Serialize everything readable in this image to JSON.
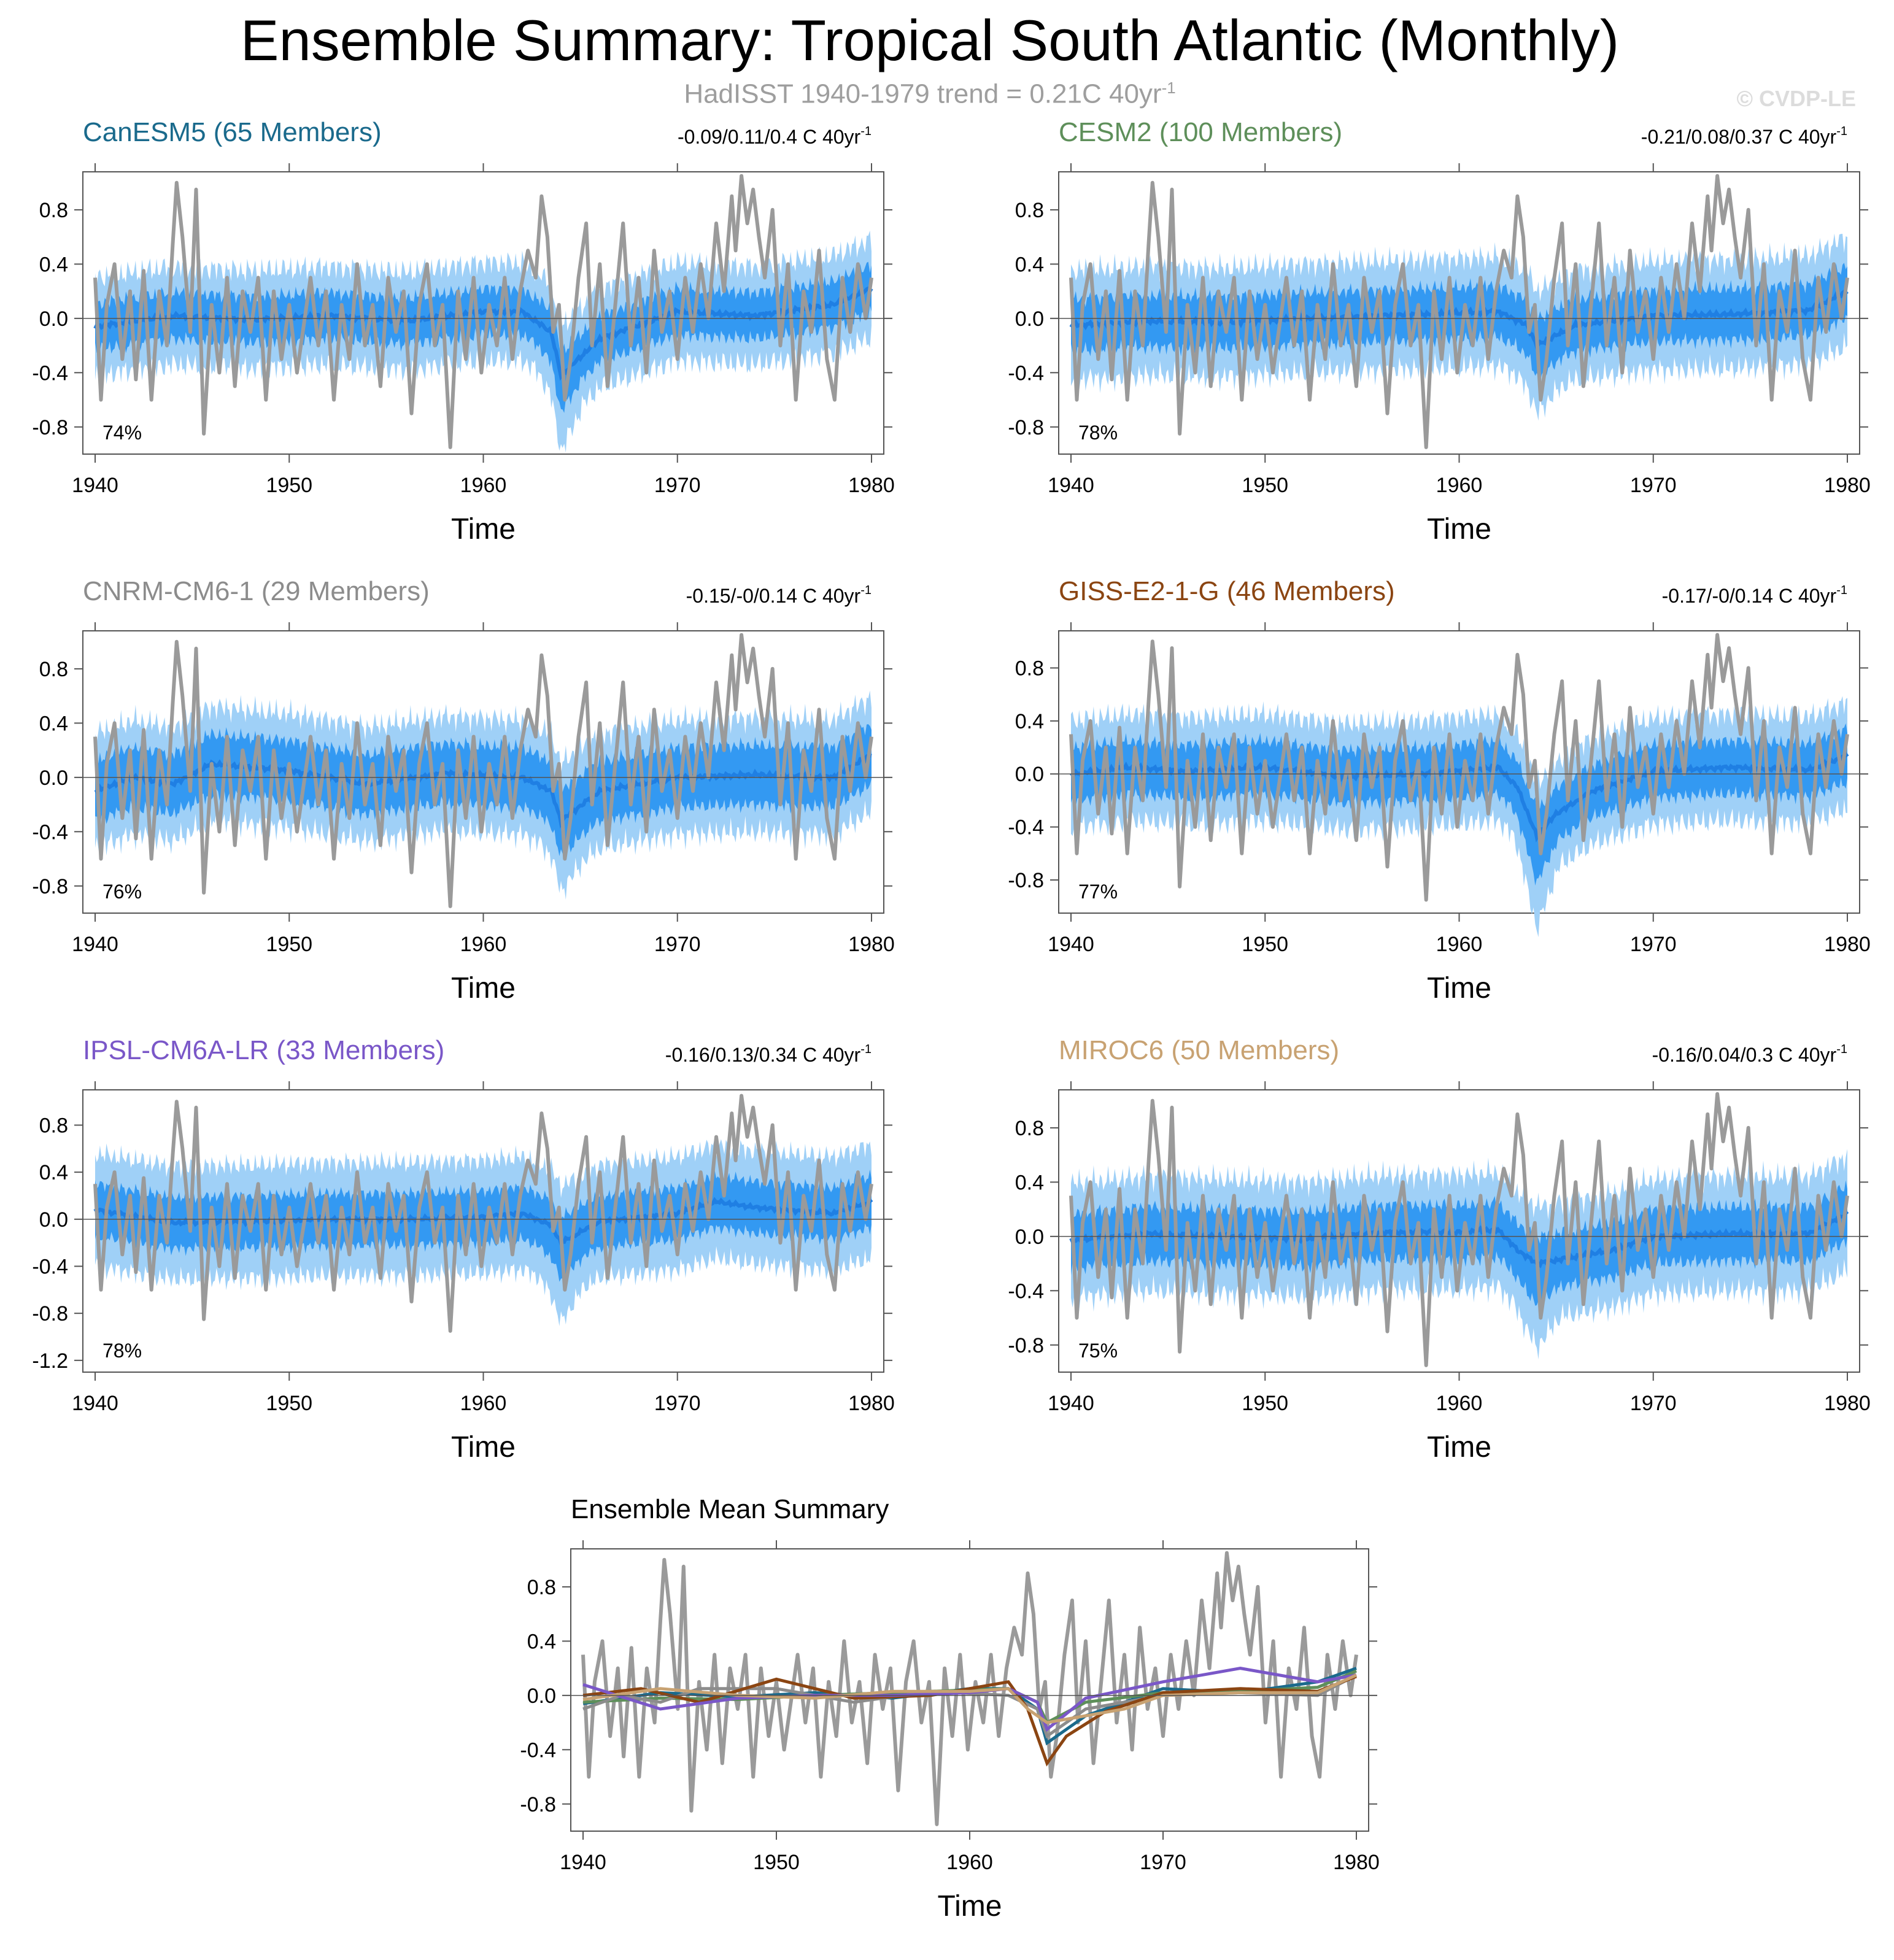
{
  "title": "Ensemble Summary: Tropical South Atlantic (Monthly)",
  "subtitle": {
    "text": "HadISST 1940-1979 trend = 0.21C 40yr",
    "sup": "-1"
  },
  "copyright": "© CVDP-LE",
  "colors": {
    "observed": "#9a9a9a",
    "outer_band": "#9fd0f7",
    "inner_band": "#3399f2",
    "ensemble_mean": "#1f7fe3",
    "zero_line": "#555555"
  },
  "chart_data": [
    {
      "type": "area",
      "title": "CanESM5 (65 Members)",
      "title_color": "#1a6a8c",
      "trend_text": "-0.09/0.11/0.4 C 40yr",
      "trend_sup": "-1",
      "percent_label": "74%",
      "xlabel": "Time",
      "xlim": [
        1940,
        1980
      ],
      "ylim": [
        -1.0,
        1.08
      ],
      "xticks": [
        1940,
        1950,
        1960,
        1970,
        1980
      ],
      "yticks": [
        -0.8,
        -0.4,
        0.0,
        0.4,
        0.8
      ],
      "ytick_labels": [
        "-0.8",
        "-0.4",
        "0.0",
        "0.4",
        "0.8"
      ],
      "mean": {
        "x": [
          1940,
          1944,
          1948,
          1952,
          1956,
          1960,
          1962,
          1963.5,
          1964,
          1966,
          1970,
          1974,
          1978,
          1980
        ],
        "y": [
          -0.06,
          0.02,
          -0.01,
          0.02,
          -0.02,
          0.05,
          0.05,
          -0.1,
          -0.42,
          -0.15,
          0.05,
          0.02,
          0.1,
          0.22
        ]
      },
      "inner_halfwidth": 0.17,
      "outer_halfwidth": 0.36,
      "inner_extra": {
        "x": 1964,
        "y": -0.1
      }
    },
    {
      "type": "area",
      "title": "CESM2 (100 Members)",
      "title_color": "#5e8f5a",
      "trend_text": "-0.21/0.08/0.37 C 40yr",
      "trend_sup": "-1",
      "percent_label": "78%",
      "xlabel": "Time",
      "xlim": [
        1940,
        1980
      ],
      "ylim": [
        -1.0,
        1.08
      ],
      "xticks": [
        1940,
        1950,
        1960,
        1970,
        1980
      ],
      "yticks": [
        -0.8,
        -0.4,
        0.0,
        0.4,
        0.8
      ],
      "ytick_labels": [
        "-0.8",
        "-0.4",
        "0.0",
        "0.4",
        "0.8"
      ],
      "mean": {
        "x": [
          1940,
          1944,
          1948,
          1952,
          1956,
          1960,
          1962,
          1963.5,
          1964,
          1966,
          1970,
          1974,
          1978,
          1980
        ],
        "y": [
          -0.05,
          -0.02,
          -0.03,
          0.0,
          0.02,
          0.04,
          0.05,
          -0.05,
          -0.2,
          -0.05,
          0.02,
          0.03,
          0.06,
          0.2
        ]
      },
      "inner_halfwidth": 0.19,
      "outer_halfwidth": 0.4,
      "inner_extra": {
        "x": 1964,
        "y": -0.05
      }
    },
    {
      "type": "area",
      "title": "CNRM-CM6-1 (29 Members)",
      "title_color": "#8c8c8c",
      "trend_text": "-0.15/-0/0.14 C 40yr",
      "trend_sup": "-1",
      "percent_label": "76%",
      "xlabel": "Time",
      "xlim": [
        1940,
        1980
      ],
      "ylim": [
        -1.0,
        1.08
      ],
      "xticks": [
        1940,
        1950,
        1960,
        1970,
        1980
      ],
      "yticks": [
        -0.8,
        -0.4,
        0.0,
        0.4,
        0.8
      ],
      "ytick_labels": [
        "-0.8",
        "-0.4",
        "0.0",
        "0.4",
        "0.8"
      ],
      "mean": {
        "x": [
          1940,
          1942,
          1944,
          1946,
          1950,
          1954,
          1958,
          1962,
          1963.5,
          1964,
          1966,
          1970,
          1974,
          1978,
          1980
        ],
        "y": [
          -0.1,
          0.0,
          -0.05,
          0.1,
          0.05,
          -0.05,
          0.03,
          0.0,
          -0.1,
          -0.32,
          -0.1,
          0.0,
          0.02,
          0.0,
          0.17
        ]
      },
      "inner_halfwidth": 0.22,
      "outer_halfwidth": 0.42,
      "inner_extra": {
        "x": 1964,
        "y": -0.05
      }
    },
    {
      "type": "area",
      "title": "GISS-E2-1-G (46 Members)",
      "title_color": "#8b4512",
      "trend_text": "-0.17/-0/0.14 C 40yr",
      "trend_sup": "-1",
      "percent_label": "77%",
      "xlabel": "Time",
      "xlim": [
        1940,
        1980
      ],
      "ylim": [
        -1.05,
        1.08
      ],
      "xticks": [
        1940,
        1950,
        1960,
        1970,
        1980
      ],
      "yticks": [
        -0.8,
        -0.4,
        0.0,
        0.4,
        0.8
      ],
      "ytick_labels": [
        "-0.8",
        "-0.4",
        "0.0",
        "0.4",
        "0.8"
      ],
      "mean": {
        "x": [
          1940,
          1943,
          1946,
          1950,
          1954,
          1958,
          1962,
          1963,
          1964,
          1965,
          1967,
          1970,
          1974,
          1978,
          1980
        ],
        "y": [
          0.0,
          0.05,
          0.02,
          0.05,
          -0.02,
          0.0,
          0.05,
          -0.1,
          -0.47,
          -0.3,
          -0.12,
          0.02,
          0.05,
          0.03,
          0.14
        ]
      },
      "inner_halfwidth": 0.2,
      "outer_halfwidth": 0.4,
      "inner_extra": {
        "x": 1964,
        "y": -0.15
      }
    },
    {
      "type": "area",
      "title": "IPSL-CM6A-LR (33 Members)",
      "title_color": "#7a57c8",
      "trend_text": "-0.16/0.13/0.34 C 40yr",
      "trend_sup": "-1",
      "percent_label": "78%",
      "xlabel": "Time",
      "xlim": [
        1940,
        1980
      ],
      "ylim": [
        -1.3,
        1.1
      ],
      "xticks": [
        1940,
        1950,
        1960,
        1970,
        1980
      ],
      "yticks": [
        -1.2,
        -0.8,
        -0.4,
        0.0,
        0.4,
        0.8
      ],
      "ytick_labels": [
        "-1.2",
        "-0.8",
        "-0.4",
        "0.0",
        "0.4",
        "0.8"
      ],
      "mean": {
        "x": [
          1940,
          1944,
          1948,
          1952,
          1956,
          1960,
          1962,
          1963.5,
          1964,
          1966,
          1970,
          1972,
          1974,
          1978,
          1980
        ],
        "y": [
          0.08,
          -0.03,
          -0.02,
          0.0,
          0.0,
          0.02,
          0.05,
          -0.05,
          -0.2,
          -0.02,
          0.05,
          0.15,
          0.1,
          0.05,
          0.15
        ]
      },
      "inner_halfwidth": 0.22,
      "outer_halfwidth": 0.48,
      "inner_extra": {
        "x": 1964,
        "y": -0.1
      }
    },
    {
      "type": "area",
      "title": "MIROC6 (50 Members)",
      "title_color": "#c8a272",
      "trend_text": "-0.16/0.04/0.3 C 40yr",
      "trend_sup": "-1",
      "percent_label": "75%",
      "xlabel": "Time",
      "xlim": [
        1940,
        1980
      ],
      "ylim": [
        -1.0,
        1.08
      ],
      "xticks": [
        1940,
        1950,
        1960,
        1970,
        1980
      ],
      "yticks": [
        -0.8,
        -0.4,
        0.0,
        0.4,
        0.8
      ],
      "ytick_labels": [
        "-0.8",
        "-0.4",
        "0.0",
        "0.4",
        "0.8"
      ],
      "mean": {
        "x": [
          1940,
          1944,
          1948,
          1952,
          1956,
          1960,
          1962,
          1963,
          1964,
          1966,
          1968,
          1970,
          1974,
          1978,
          1980
        ],
        "y": [
          -0.03,
          0.02,
          0.0,
          -0.02,
          0.03,
          0.03,
          0.05,
          -0.1,
          -0.2,
          -0.15,
          -0.1,
          0.0,
          0.02,
          0.02,
          0.17
        ]
      },
      "inner_halfwidth": 0.2,
      "outer_halfwidth": 0.42,
      "inner_extra": {
        "x": 1964,
        "y": -0.1
      }
    },
    {
      "type": "line",
      "title": "Ensemble Mean Summary",
      "title_color": "#000000",
      "xlabel": "Time",
      "xlim": [
        1940,
        1980
      ],
      "ylim": [
        -1.0,
        1.08
      ],
      "xticks": [
        1940,
        1950,
        1960,
        1970,
        1980
      ],
      "yticks": [
        -0.8,
        -0.4,
        0.0,
        0.4,
        0.8
      ],
      "ytick_labels": [
        "-0.8",
        "-0.4",
        "0.0",
        "0.4",
        "0.8"
      ]
    }
  ],
  "observed_series": {
    "x": [
      1940.0,
      1940.3,
      1940.6,
      1941.0,
      1941.4,
      1941.8,
      1942.1,
      1942.5,
      1942.9,
      1943.3,
      1943.7,
      1944.0,
      1944.2,
      1944.5,
      1944.9,
      1945.2,
      1945.6,
      1946.0,
      1946.4,
      1946.8,
      1947.2,
      1947.6,
      1948.0,
      1948.4,
      1948.8,
      1949.2,
      1949.6,
      1950.0,
      1950.4,
      1950.8,
      1951.1,
      1951.5,
      1951.9,
      1952.3,
      1952.7,
      1953.1,
      1953.5,
      1953.9,
      1954.3,
      1954.7,
      1955.1,
      1955.5,
      1955.9,
      1956.3,
      1956.7,
      1957.1,
      1957.5,
      1957.9,
      1958.3,
      1958.7,
      1959.1,
      1959.5,
      1959.9,
      1960.3,
      1960.7,
      1961.1,
      1961.5,
      1961.9,
      1962.3,
      1962.7,
      1963.0,
      1963.3,
      1963.6,
      1963.9,
      1964.2,
      1964.5,
      1964.9,
      1965.3,
      1965.6,
      1966.0,
      1966.4,
      1966.8,
      1967.2,
      1967.6,
      1968.0,
      1968.4,
      1968.8,
      1969.2,
      1969.6,
      1970.0,
      1970.4,
      1970.8,
      1971.2,
      1971.6,
      1972.0,
      1972.4,
      1972.8,
      1973.0,
      1973.3,
      1973.6,
      1973.9,
      1974.2,
      1974.5,
      1974.9,
      1975.3,
      1975.7,
      1976.1,
      1976.5,
      1976.9,
      1977.3,
      1977.7,
      1978.1,
      1978.5,
      1978.9,
      1979.3,
      1979.7,
      1980.0
    ],
    "y": [
      0.3,
      -0.6,
      0.1,
      0.4,
      -0.3,
      0.2,
      -0.45,
      0.35,
      -0.6,
      0.2,
      -0.2,
      0.55,
      1.0,
      0.6,
      -0.1,
      0.95,
      -0.85,
      0.1,
      -0.4,
      0.3,
      -0.5,
      0.2,
      -0.1,
      0.3,
      -0.6,
      0.2,
      -0.3,
      0.1,
      -0.4,
      0.0,
      0.3,
      -0.2,
      0.2,
      -0.6,
      0.1,
      -0.3,
      0.4,
      -0.2,
      0.1,
      -0.5,
      0.3,
      -0.1,
      0.2,
      -0.7,
      0.1,
      0.4,
      -0.2,
      0.1,
      -0.95,
      0.2,
      -0.3,
      0.3,
      -0.4,
      0.1,
      -0.2,
      0.3,
      -0.3,
      0.2,
      0.5,
      0.3,
      0.9,
      0.6,
      -0.1,
      0.1,
      -0.6,
      -0.3,
      0.3,
      0.7,
      -0.2,
      0.4,
      -0.5,
      0.1,
      0.7,
      -0.2,
      0.3,
      -0.4,
      0.5,
      -0.1,
      0.2,
      -0.3,
      0.3,
      -0.1,
      0.4,
      0.0,
      0.7,
      0.2,
      0.9,
      0.5,
      1.05,
      0.7,
      0.95,
      0.6,
      0.3,
      0.8,
      -0.2,
      0.4,
      -0.6,
      0.2,
      -0.1,
      0.5,
      -0.3,
      -0.6,
      0.3,
      -0.1,
      0.4,
      0.0,
      0.3
    ]
  },
  "summary_series": [
    {
      "color": "#1a6a8c",
      "x": [
        1940,
        1944,
        1948,
        1952,
        1956,
        1960,
        1962,
        1963.5,
        1964,
        1966,
        1970,
        1974,
        1978,
        1980
      ],
      "y": [
        -0.06,
        0.02,
        -0.01,
        0.02,
        -0.02,
        0.05,
        0.05,
        -0.1,
        -0.35,
        -0.15,
        0.05,
        0.02,
        0.1,
        0.2
      ]
    },
    {
      "color": "#5e8f5a",
      "x": [
        1940,
        1944,
        1948,
        1952,
        1956,
        1960,
        1962,
        1963.5,
        1964,
        1966,
        1970,
        1974,
        1978,
        1980
      ],
      "y": [
        -0.05,
        -0.02,
        -0.03,
        0.0,
        0.02,
        0.04,
        0.05,
        -0.05,
        -0.2,
        -0.05,
        0.02,
        0.03,
        0.06,
        0.18
      ]
    },
    {
      "color": "#8c8c8c",
      "x": [
        1940,
        1942,
        1944,
        1946,
        1950,
        1954,
        1958,
        1962,
        1963.5,
        1964,
        1966,
        1970,
        1974,
        1978,
        1980
      ],
      "y": [
        -0.1,
        0.0,
        -0.05,
        0.05,
        0.05,
        -0.05,
        0.03,
        0.0,
        -0.1,
        -0.3,
        -0.1,
        0.0,
        0.02,
        0.0,
        0.15
      ]
    },
    {
      "color": "#8b4512",
      "x": [
        1940,
        1943,
        1946,
        1950,
        1954,
        1958,
        1962,
        1963,
        1964,
        1965,
        1967,
        1970,
        1974,
        1978,
        1980
      ],
      "y": [
        0.0,
        0.05,
        -0.05,
        0.12,
        -0.02,
        0.0,
        0.1,
        -0.1,
        -0.5,
        -0.3,
        -0.12,
        0.02,
        0.05,
        0.03,
        0.14
      ]
    },
    {
      "color": "#7a57c8",
      "x": [
        1940,
        1944,
        1948,
        1952,
        1956,
        1960,
        1962,
        1963.5,
        1964,
        1966,
        1970,
        1972,
        1974,
        1978,
        1980
      ],
      "y": [
        0.08,
        -0.1,
        -0.02,
        0.0,
        0.0,
        0.02,
        0.05,
        -0.05,
        -0.25,
        -0.02,
        0.1,
        0.15,
        0.2,
        0.1,
        0.15
      ]
    },
    {
      "color": "#c8a272",
      "x": [
        1940,
        1944,
        1948,
        1952,
        1956,
        1960,
        1962,
        1963,
        1964,
        1966,
        1968,
        1970,
        1974,
        1978,
        1980
      ],
      "y": [
        -0.03,
        0.05,
        0.0,
        -0.02,
        0.03,
        0.03,
        0.05,
        -0.1,
        -0.2,
        -0.15,
        -0.1,
        0.0,
        0.02,
        0.02,
        0.15
      ]
    }
  ]
}
